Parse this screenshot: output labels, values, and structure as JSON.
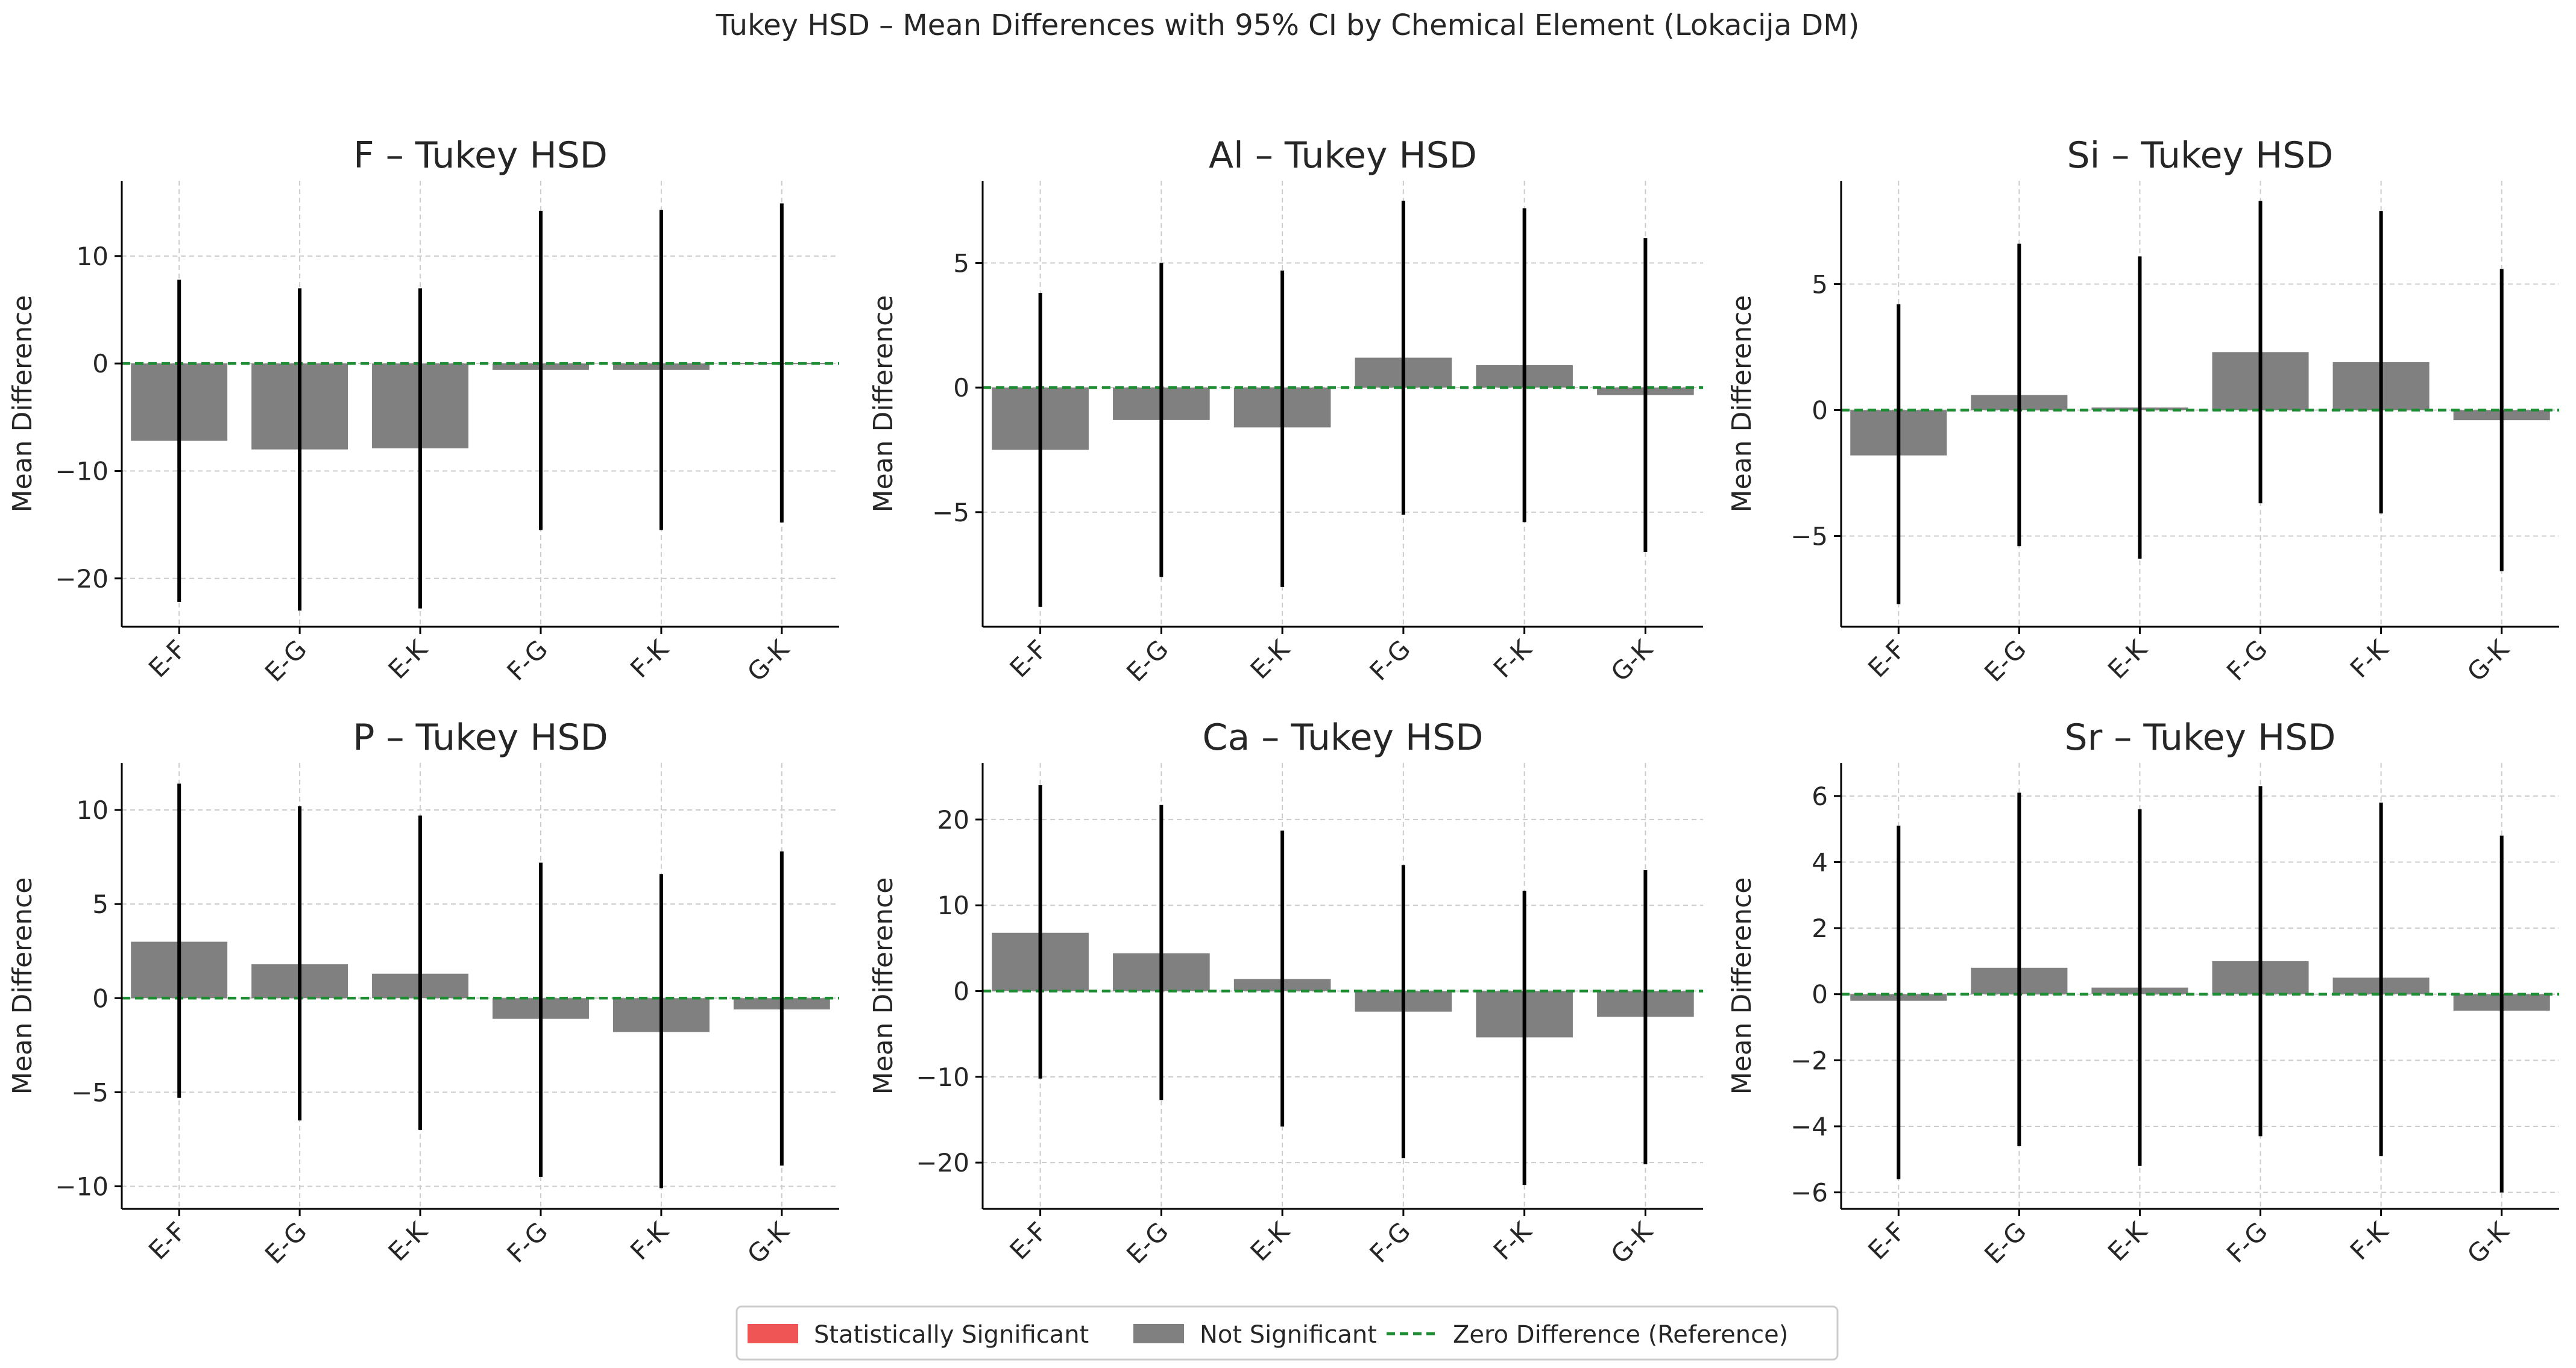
{
  "figure": {
    "title": "Tukey HSD – Mean Differences with 95% CI by Chemical Element (Lokacija DM)"
  },
  "legend": {
    "placement": "bottom-center",
    "items": [
      {
        "label": "Statistically Significant",
        "kind": "patch",
        "color": "#f05555"
      },
      {
        "label": "Not Significant",
        "kind": "patch",
        "color": "#808080"
      },
      {
        "label": "Zero Difference (Reference)",
        "kind": "dashed-line",
        "color": "#1e8c32"
      }
    ]
  },
  "chart_data": [
    {
      "type": "bar",
      "title": "F – Tukey HSD",
      "ylabel": "Mean Difference",
      "categories": [
        "E-F",
        "E-G",
        "E-K",
        "F-G",
        "F-K",
        "G-K"
      ],
      "values": [
        -7.2,
        -8.0,
        -7.9,
        -0.6,
        -0.6,
        0.05
      ],
      "ci_lower": [
        -22.2,
        -23.0,
        -22.8,
        -15.5,
        -15.5,
        -14.8
      ],
      "ci_upper": [
        7.8,
        7.0,
        7.0,
        14.2,
        14.3,
        14.9
      ],
      "significant": [
        false,
        false,
        false,
        false,
        false,
        false
      ],
      "ylim": [
        -24.5,
        17
      ],
      "yticks": [
        -20,
        -10,
        0,
        10
      ],
      "ytick_labels": [
        "−20",
        "−10",
        "0",
        "10"
      ]
    },
    {
      "type": "bar",
      "title": "Al – Tukey HSD",
      "ylabel": "Mean Difference",
      "categories": [
        "E-F",
        "E-G",
        "E-K",
        "F-G",
        "F-K",
        "G-K"
      ],
      "values": [
        -2.5,
        -1.3,
        -1.6,
        1.2,
        0.9,
        -0.3
      ],
      "ci_lower": [
        -8.8,
        -7.6,
        -8.0,
        -5.1,
        -5.4,
        -6.6
      ],
      "ci_upper": [
        3.8,
        5.0,
        4.7,
        7.5,
        7.2,
        6.0
      ],
      "significant": [
        false,
        false,
        false,
        false,
        false,
        false
      ],
      "ylim": [
        -9.6,
        8.3
      ],
      "yticks": [
        -5,
        0,
        5
      ],
      "ytick_labels": [
        "−5",
        "0",
        "5"
      ]
    },
    {
      "type": "bar",
      "title": "Si – Tukey HSD",
      "ylabel": "Mean Difference",
      "categories": [
        "E-F",
        "E-G",
        "E-K",
        "F-G",
        "F-K",
        "G-K"
      ],
      "values": [
        -1.8,
        0.6,
        0.1,
        2.3,
        1.9,
        -0.4
      ],
      "ci_lower": [
        -7.7,
        -5.4,
        -5.9,
        -3.7,
        -4.1,
        -6.4
      ],
      "ci_upper": [
        4.2,
        6.6,
        6.1,
        8.3,
        7.9,
        5.6
      ],
      "significant": [
        false,
        false,
        false,
        false,
        false,
        false
      ],
      "ylim": [
        -8.6,
        9.1
      ],
      "yticks": [
        -5,
        0,
        5
      ],
      "ytick_labels": [
        "−5",
        "0",
        "5"
      ]
    },
    {
      "type": "bar",
      "title": "P – Tukey HSD",
      "ylabel": "Mean Difference",
      "categories": [
        "E-F",
        "E-G",
        "E-K",
        "F-G",
        "F-K",
        "G-K"
      ],
      "values": [
        3.0,
        1.8,
        1.3,
        -1.1,
        -1.8,
        -0.6
      ],
      "ci_lower": [
        -5.3,
        -6.5,
        -7.0,
        -9.5,
        -10.1,
        -8.9
      ],
      "ci_upper": [
        11.4,
        10.2,
        9.7,
        7.2,
        6.6,
        7.8
      ],
      "significant": [
        false,
        false,
        false,
        false,
        false,
        false
      ],
      "ylim": [
        -11.2,
        12.5
      ],
      "yticks": [
        -10,
        -5,
        0,
        5,
        10
      ],
      "ytick_labels": [
        "−10",
        "−5",
        "0",
        "5",
        "10"
      ]
    },
    {
      "type": "bar",
      "title": "Ca – Tukey HSD",
      "ylabel": "Mean Difference",
      "categories": [
        "E-F",
        "E-G",
        "E-K",
        "F-G",
        "F-K",
        "G-K"
      ],
      "values": [
        6.8,
        4.4,
        1.4,
        -2.4,
        -5.4,
        -3.0
      ],
      "ci_lower": [
        -10.2,
        -12.7,
        -15.8,
        -19.5,
        -22.6,
        -20.2
      ],
      "ci_upper": [
        24.0,
        21.7,
        18.7,
        14.7,
        11.7,
        14.1
      ],
      "significant": [
        false,
        false,
        false,
        false,
        false,
        false
      ],
      "ylim": [
        -25.4,
        26.6
      ],
      "yticks": [
        -20,
        -10,
        0,
        10,
        20
      ],
      "ytick_labels": [
        "−20",
        "−10",
        "0",
        "10",
        "20"
      ]
    },
    {
      "type": "bar",
      "title": "Sr – Tukey HSD",
      "ylabel": "Mean Difference",
      "categories": [
        "E-F",
        "E-G",
        "E-K",
        "F-G",
        "F-K",
        "G-K"
      ],
      "values": [
        -0.2,
        0.8,
        0.2,
        1.0,
        0.5,
        -0.5
      ],
      "ci_lower": [
        -5.6,
        -4.6,
        -5.2,
        -4.3,
        -4.9,
        -6.0
      ],
      "ci_upper": [
        5.1,
        6.1,
        5.6,
        6.3,
        5.8,
        4.8
      ],
      "significant": [
        false,
        false,
        false,
        false,
        false,
        false
      ],
      "ylim": [
        -6.5,
        7.0
      ],
      "yticks": [
        -6,
        -4,
        -2,
        0,
        2,
        4,
        6
      ],
      "ytick_labels": [
        "−6",
        "−4",
        "−2",
        "0",
        "2",
        "4",
        "6"
      ]
    }
  ]
}
